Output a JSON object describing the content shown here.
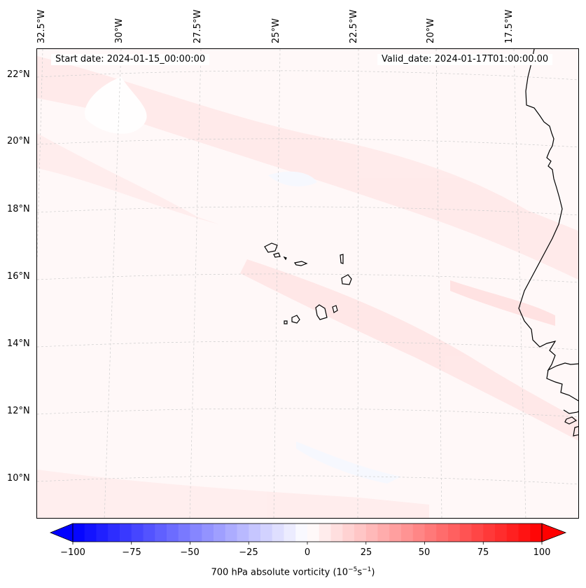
{
  "map": {
    "start_date": "Start date: 2024-01-15_00:00:00",
    "valid_date": "Valid_date: 2024-01-17T01:00:00.00",
    "lat_labels": [
      "22°N",
      "20°N",
      "18°N",
      "16°N",
      "14°N",
      "12°N",
      "10°N"
    ],
    "lon_labels": [
      "32.5°W",
      "30°W",
      "27.5°W",
      "25°W",
      "22.5°W",
      "20°W",
      "17.5°W"
    ],
    "features": [
      "Cape Verde islands",
      "West African coastline"
    ]
  },
  "colorbar": {
    "ticks": [
      "−100",
      "−75",
      "−50",
      "−25",
      "0",
      "25",
      "50",
      "75",
      "100"
    ],
    "label_main": "700 hPa absolute vorticity (10",
    "label_exp1": "−5",
    "label_mid": "s",
    "label_exp2": "−1",
    "label_end": ")",
    "min_color": "#0000ff",
    "mid_color": "#ffffff",
    "max_color": "#ff0000"
  }
}
